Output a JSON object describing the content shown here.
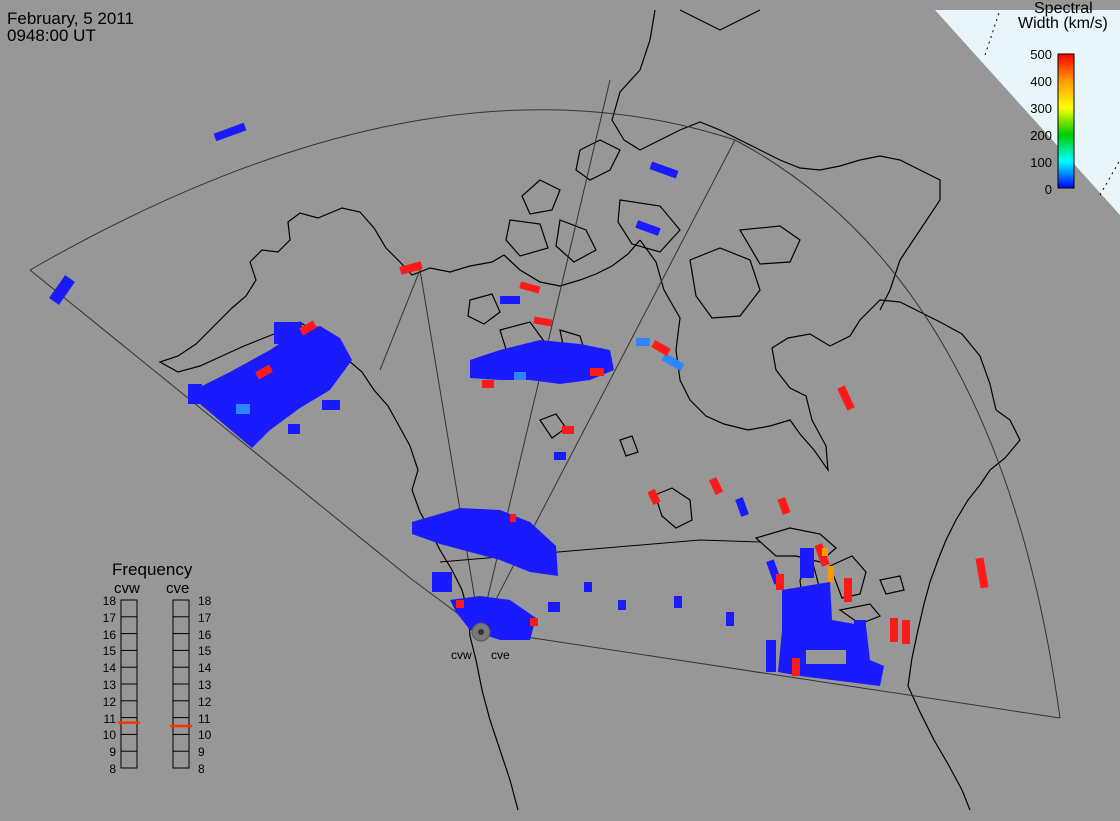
{
  "header": {
    "date": "February, 5 2011",
    "time": "0948:00 UT"
  },
  "colorbar": {
    "title_line1": "Spectral",
    "title_line2": "Width (km/s)",
    "ticks": [
      "500",
      "400",
      "300",
      "200",
      "100",
      "0"
    ],
    "colors": [
      "#ff0000",
      "#ff9900",
      "#ffff00",
      "#00cc00",
      "#00ffff",
      "#0000ff"
    ]
  },
  "frequency": {
    "title": "Frequency",
    "left_label": "cvw",
    "right_label": "cve",
    "scale": [
      "18",
      "17",
      "16",
      "15",
      "14",
      "13",
      "12",
      "11",
      "10",
      "9",
      "8"
    ],
    "cvw_mhz": 10.7,
    "cve_mhz": 10.5,
    "marker_color": "#ff3300"
  },
  "radars": {
    "west_label": "cvw",
    "east_label": "cve"
  },
  "colors": {
    "ocean": "#979797",
    "echo_low": "#1a1aff",
    "echo_high": "#ff1a1a",
    "echo_mid": "#ff9900"
  }
}
